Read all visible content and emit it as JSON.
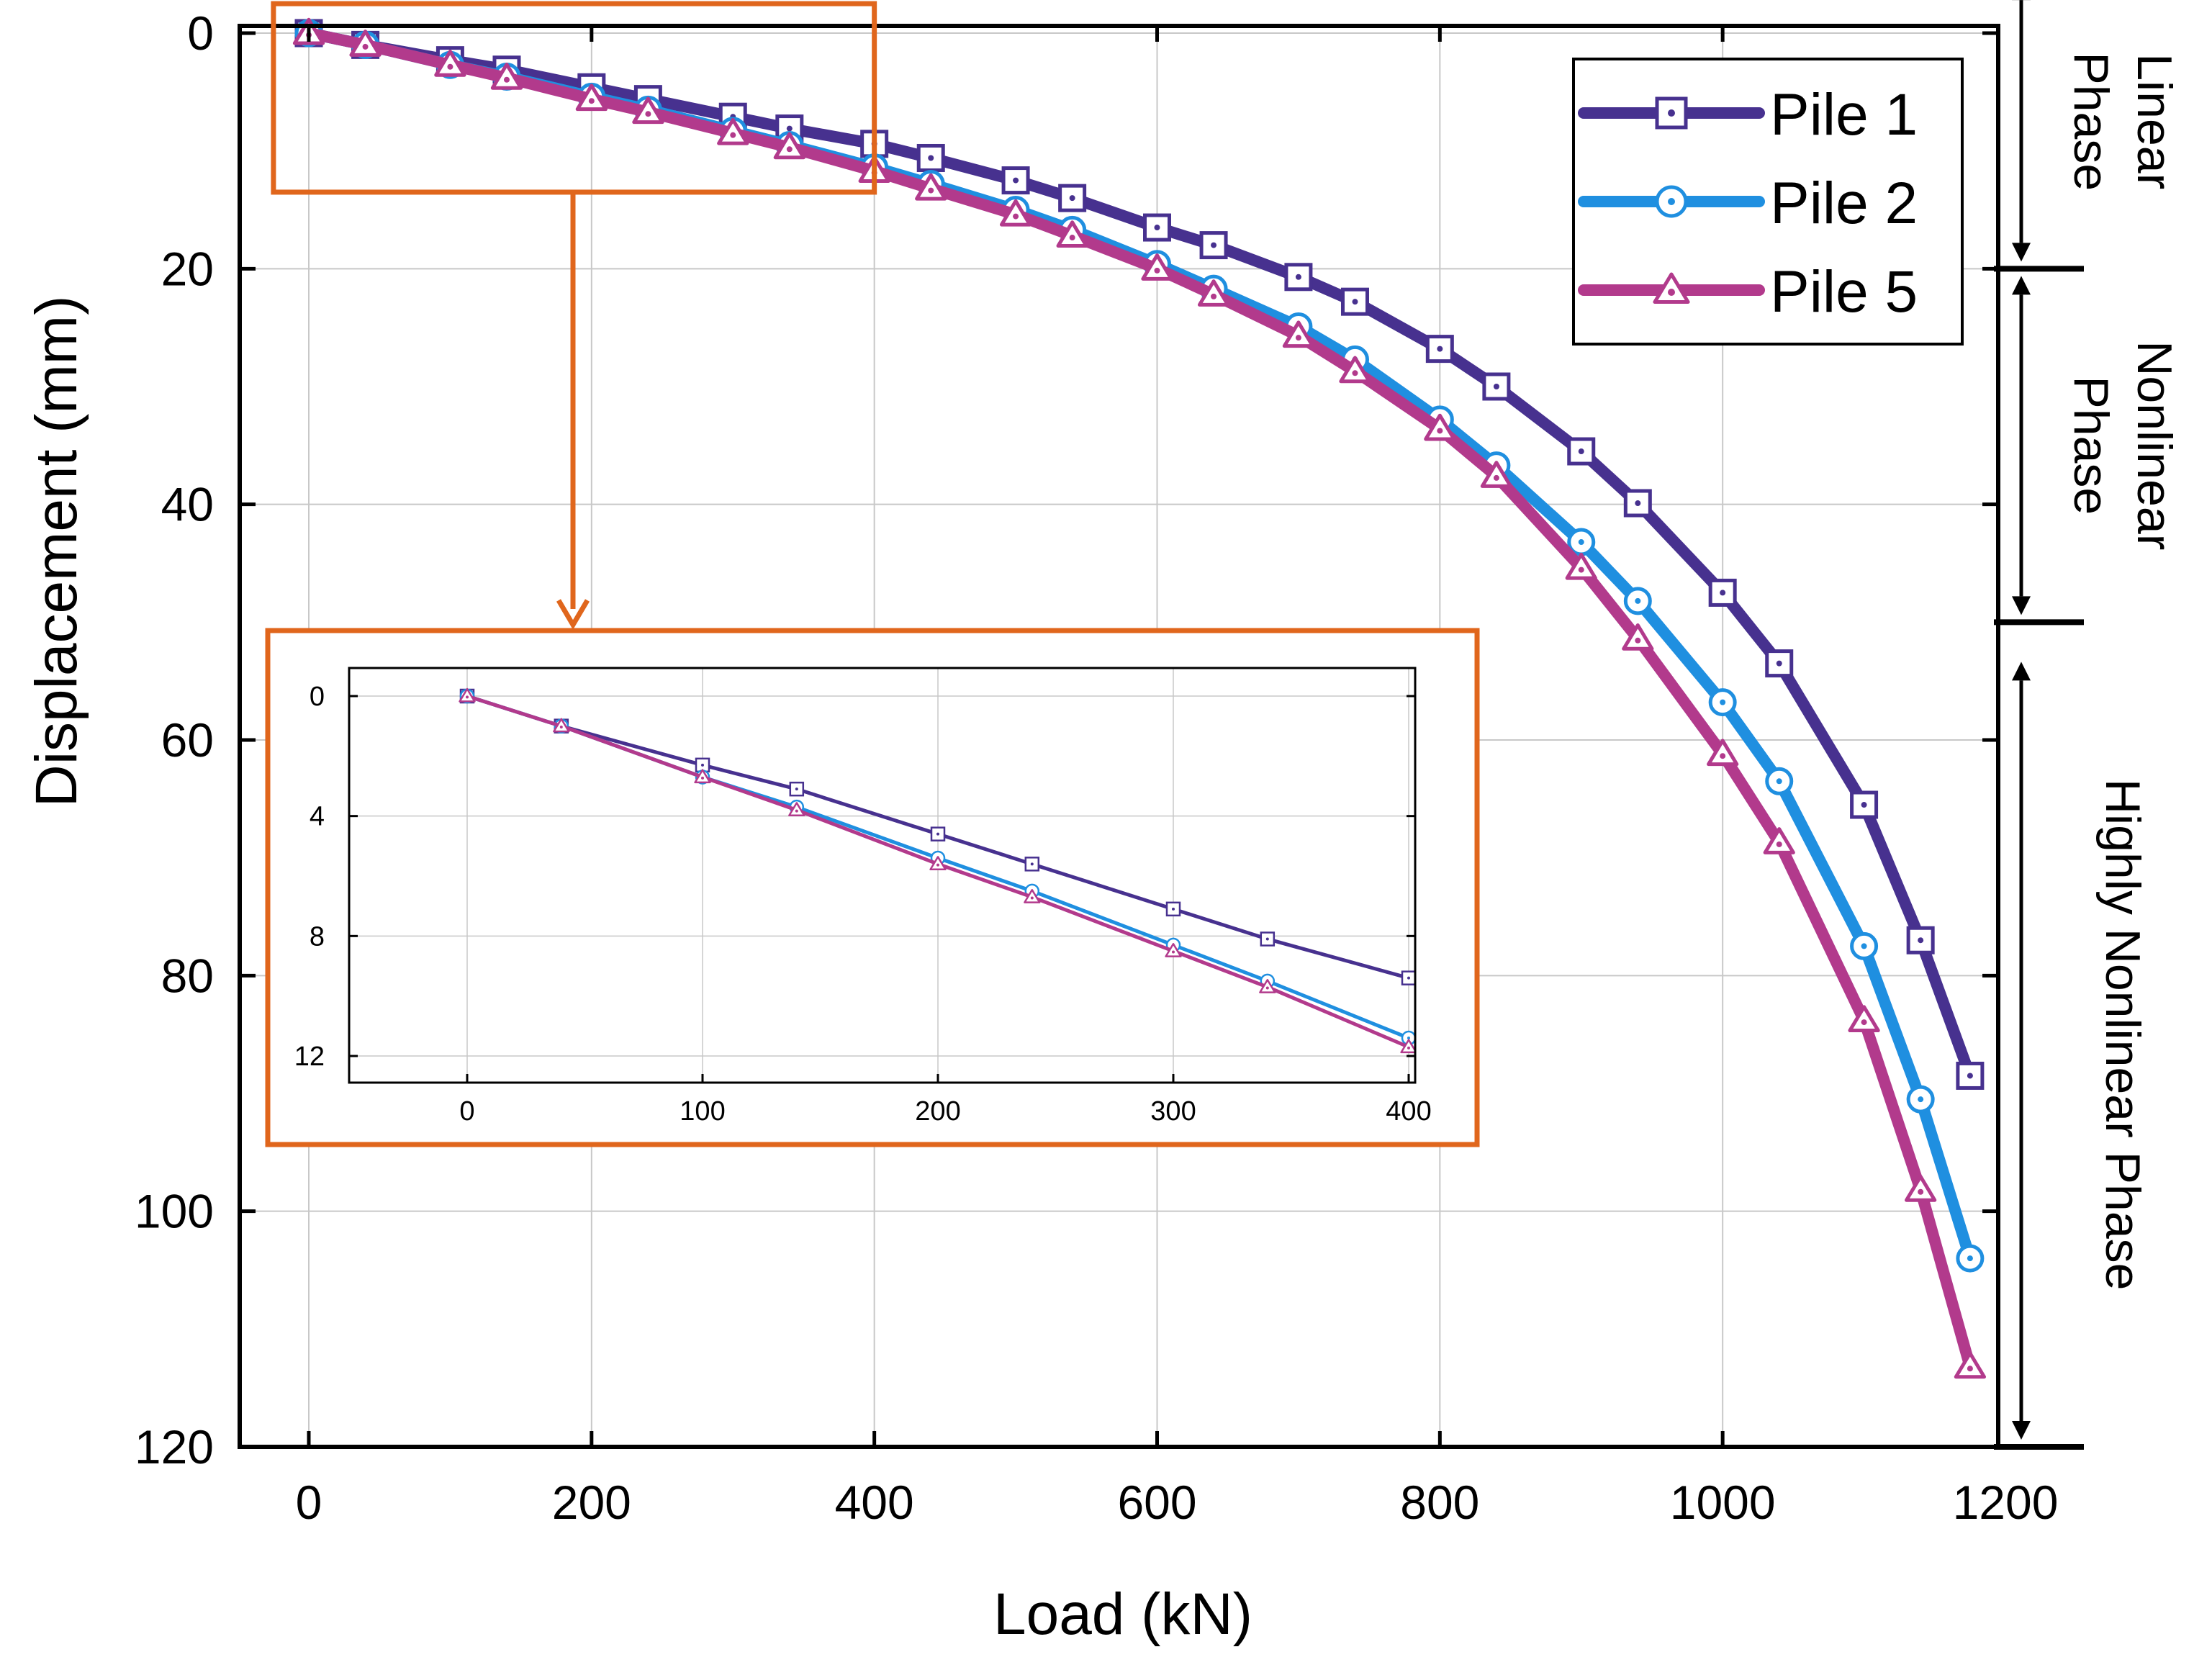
{
  "chart_data": {
    "type": "line",
    "xlabel": "Load (kN)",
    "ylabel": "Displacement (mm)",
    "xlim": [
      -25,
      1200
    ],
    "ylim": [
      0,
      120
    ],
    "y_inverted": true,
    "xticks": [
      0,
      200,
      400,
      600,
      800,
      1000,
      1200
    ],
    "yticks": [
      0,
      20,
      40,
      60,
      80,
      100,
      120
    ],
    "x_tick_labels": [
      "0",
      "200",
      "400",
      "600",
      "800",
      "1000",
      "1200"
    ],
    "y_tick_labels": [
      "0",
      "20",
      "40",
      "60",
      "80",
      "100",
      "120"
    ],
    "grid": true,
    "legend_position": "top-right",
    "series": [
      {
        "name": "Pile 1",
        "color": "#47318f",
        "marker": "square",
        "x": [
          0,
          40,
          100,
          140,
          200,
          240,
          300,
          340,
          400,
          440,
          500,
          540,
          600,
          640,
          700,
          740,
          800,
          840,
          900,
          940,
          1000,
          1040,
          1100,
          1140,
          1175
        ],
        "y": [
          0,
          1,
          2.3,
          3.1,
          4.6,
          5.6,
          7.1,
          8.1,
          9.4,
          10.6,
          12.5,
          14,
          16.5,
          18,
          20.7,
          22.8,
          26.8,
          30,
          35.5,
          39.9,
          47.5,
          53.5,
          65.5,
          77,
          88.5
        ]
      },
      {
        "name": "Pile 2",
        "color": "#1f8fe0",
        "marker": "circle",
        "x": [
          0,
          40,
          100,
          140,
          200,
          240,
          300,
          340,
          400,
          440,
          500,
          540,
          600,
          640,
          700,
          740,
          800,
          840,
          900,
          940,
          1000,
          1040,
          1100,
          1140,
          1175
        ],
        "y": [
          0,
          1,
          2.7,
          3.7,
          5.4,
          6.5,
          8.3,
          9.5,
          11.4,
          12.8,
          15,
          16.7,
          19.6,
          21.7,
          24.9,
          27.7,
          32.8,
          36.7,
          43.2,
          48.2,
          56.8,
          63.5,
          77.5,
          90.5,
          104
        ]
      },
      {
        "name": "Pile 5",
        "color": "#b23a8c",
        "marker": "triangle",
        "x": [
          0,
          40,
          100,
          140,
          200,
          240,
          300,
          340,
          400,
          440,
          500,
          540,
          600,
          640,
          700,
          740,
          800,
          840,
          900,
          940,
          1000,
          1040,
          1100,
          1140,
          1175
        ],
        "y": [
          0,
          1,
          2.7,
          3.8,
          5.6,
          6.7,
          8.5,
          9.7,
          11.7,
          13.2,
          15.4,
          17.2,
          20,
          22.2,
          25.7,
          28.7,
          33.6,
          37.6,
          45.4,
          51.4,
          61.2,
          68.7,
          83.8,
          98.2,
          113.2
        ]
      }
    ],
    "phases": [
      {
        "label": "Linear Phase",
        "lines": [
          "Linear",
          "Phase"
        ],
        "y_start": -5,
        "y_end": 20
      },
      {
        "label": "Nonlinear Phase",
        "lines": [
          "Nonlinear",
          "Phase"
        ],
        "y_start": 20,
        "y_end": 50
      },
      {
        "label": "Highly Nonlinear Phase",
        "lines": [
          "Highly Nonlinear Phase"
        ],
        "y_start": 50,
        "y_end": 120
      }
    ],
    "zoom_region": {
      "x_range": [
        -25,
        400
      ],
      "y_range": [
        -2.5,
        13.5
      ]
    },
    "inset": {
      "xlim": [
        -50,
        400
      ],
      "ylim": [
        -0.7,
        12.4
      ],
      "xticks": [
        0,
        100,
        200,
        300,
        400
      ],
      "yticks": [
        0,
        4,
        8,
        12
      ],
      "x_tick_labels": [
        "0",
        "100",
        "200",
        "300",
        "400"
      ],
      "y_tick_labels": [
        "0",
        "4",
        "8",
        "12"
      ]
    }
  },
  "colors": {
    "frame": "#000000",
    "grid": "#c8c8c8",
    "zoom_box": "#e0661c"
  }
}
